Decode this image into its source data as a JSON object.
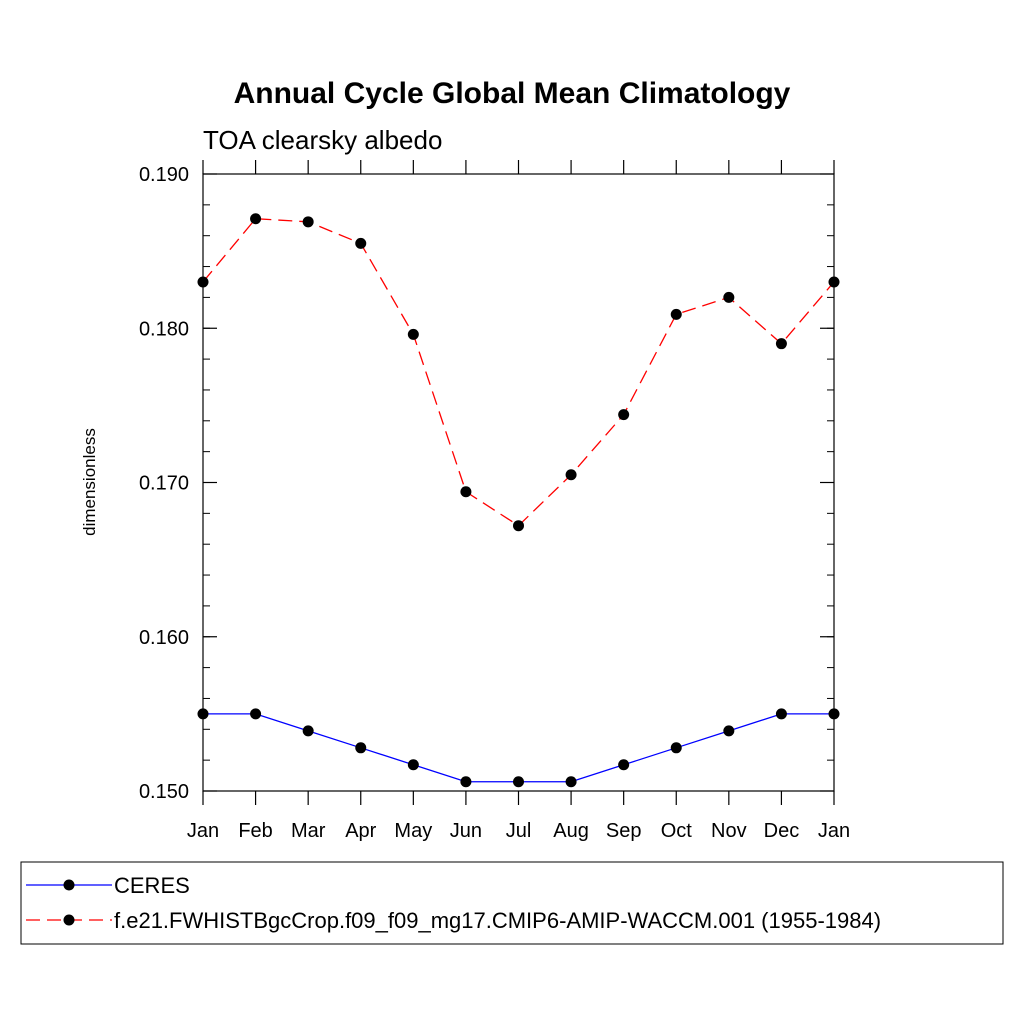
{
  "chart_data": {
    "type": "line",
    "title": "Annual Cycle Global Mean Climatology",
    "subtitle": "TOA clearsky albedo",
    "xlabel": "",
    "ylabel": "dimensionless",
    "categories": [
      "Jan",
      "Feb",
      "Mar",
      "Apr",
      "May",
      "Jun",
      "Jul",
      "Aug",
      "Sep",
      "Oct",
      "Nov",
      "Dec",
      "Jan"
    ],
    "ylim": [
      0.15,
      0.19
    ],
    "yticks": [
      "0.150",
      "0.160",
      "0.170",
      "0.180",
      "0.190"
    ],
    "series": [
      {
        "name": "CERES",
        "color": "#0000ff",
        "style": "solid",
        "values": [
          0.155,
          0.155,
          0.1539,
          0.1528,
          0.1517,
          0.1506,
          0.1506,
          0.1506,
          0.1517,
          0.1528,
          0.1539,
          0.155,
          0.155
        ]
      },
      {
        "name": "f.e21.FWHISTBgcCrop.f09_f09_mg17.CMIP6-AMIP-WACCM.001 (1955-1984)",
        "color": "#ff0000",
        "style": "dashed",
        "values": [
          0.183,
          0.1871,
          0.1869,
          0.1855,
          0.1796,
          0.1694,
          0.1672,
          0.1705,
          0.1744,
          0.1809,
          0.182,
          0.179,
          0.183
        ]
      }
    ],
    "legend": "bottom"
  }
}
